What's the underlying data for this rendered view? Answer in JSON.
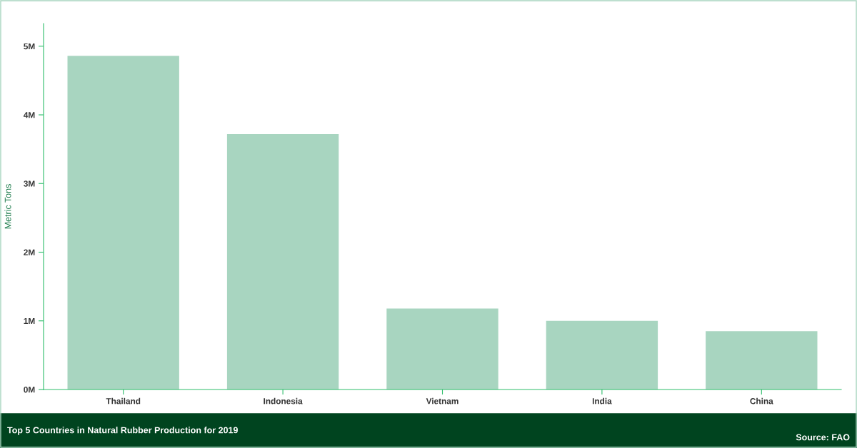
{
  "chart_data": {
    "type": "bar",
    "title": "Top 5 Countries in Natural Rubber Production for 2019",
    "ylabel": "Metric Tons",
    "categories": [
      "Thailand",
      "Indonesia",
      "Vietnam",
      "India",
      "China"
    ],
    "values": [
      4860000,
      3720000,
      1180000,
      1000000,
      850000
    ],
    "color": "#a8d5c0",
    "ylim": [
      0,
      5330000
    ],
    "yticks": [
      {
        "value": 0,
        "label": "0M"
      },
      {
        "value": 1000000,
        "label": "1M"
      },
      {
        "value": 2000000,
        "label": "2M"
      },
      {
        "value": 3000000,
        "label": "3M"
      },
      {
        "value": 4000000,
        "label": "4M"
      },
      {
        "value": 5000000,
        "label": "5M"
      }
    ],
    "annotations": [
      "Source: FAO"
    ],
    "grid": false,
    "legend": false
  }
}
